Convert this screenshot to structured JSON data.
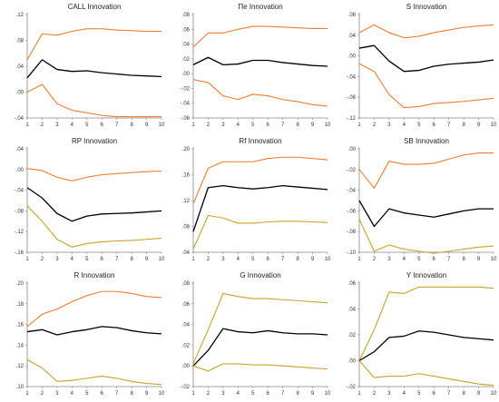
{
  "chart_data": [
    {
      "type": "line",
      "title": "CALL Innovation",
      "x": [
        1,
        2,
        3,
        4,
        5,
        6,
        7,
        8,
        9,
        10
      ],
      "ylim": [
        -0.04,
        0.12
      ],
      "yticks": [
        ".12",
        ".08",
        ".04",
        ".00",
        "-.04"
      ],
      "yticks_v": [
        0.12,
        0.08,
        0.04,
        0.0,
        -0.04
      ],
      "series": [
        {
          "role": "upper",
          "color": "#ED7D31",
          "values": [
            0.05,
            0.09,
            0.088,
            0.094,
            0.098,
            0.098,
            0.096,
            0.095,
            0.094,
            0.094
          ]
        },
        {
          "role": "response",
          "color": "#000000",
          "values": [
            0.022,
            0.05,
            0.035,
            0.032,
            0.033,
            0.03,
            0.028,
            0.026,
            0.025,
            0.024
          ]
        },
        {
          "role": "lower",
          "color": "#ED7D31",
          "values": [
            0.0,
            0.012,
            -0.018,
            -0.028,
            -0.032,
            -0.036,
            -0.038,
            -0.038,
            -0.038,
            -0.038
          ]
        }
      ]
    },
    {
      "type": "line",
      "title": "Пe Innovation",
      "x": [
        1,
        2,
        3,
        4,
        5,
        6,
        7,
        8,
        9,
        10
      ],
      "ylim": [
        -0.06,
        0.08
      ],
      "yticks": [
        ".08",
        ".06",
        ".04",
        ".02",
        ".00",
        "-.02",
        "-.04",
        "-.06"
      ],
      "yticks_v": [
        0.08,
        0.06,
        0.04,
        0.02,
        0.0,
        -0.02,
        -0.04,
        -0.06
      ],
      "series": [
        {
          "role": "upper",
          "color": "#ED7D31",
          "values": [
            0.036,
            0.055,
            0.055,
            0.06,
            0.064,
            0.064,
            0.063,
            0.062,
            0.061,
            0.061
          ]
        },
        {
          "role": "response",
          "color": "#000000",
          "values": [
            0.012,
            0.022,
            0.012,
            0.013,
            0.018,
            0.018,
            0.015,
            0.013,
            0.011,
            0.01
          ]
        },
        {
          "role": "lower",
          "color": "#ED7D31",
          "values": [
            -0.008,
            -0.012,
            -0.03,
            -0.035,
            -0.028,
            -0.03,
            -0.035,
            -0.038,
            -0.042,
            -0.044
          ]
        }
      ]
    },
    {
      "type": "line",
      "title": "S Innovation",
      "x": [
        1,
        2,
        3,
        4,
        5,
        6,
        7,
        8,
        9,
        10
      ],
      "ylim": [
        -0.12,
        0.08
      ],
      "yticks": [
        ".08",
        ".04",
        ".00",
        "-.04",
        "-.08",
        "-.12"
      ],
      "yticks_v": [
        0.08,
        0.04,
        0.0,
        -0.04,
        -0.08,
        -0.12
      ],
      "series": [
        {
          "role": "upper",
          "color": "#ED7D31",
          "values": [
            0.045,
            0.06,
            0.045,
            0.035,
            0.038,
            0.045,
            0.05,
            0.055,
            0.058,
            0.06
          ]
        },
        {
          "role": "response",
          "color": "#000000",
          "values": [
            0.015,
            0.02,
            -0.01,
            -0.03,
            -0.028,
            -0.02,
            -0.016,
            -0.014,
            -0.012,
            -0.008
          ]
        },
        {
          "role": "lower",
          "color": "#ED7D31",
          "values": [
            -0.015,
            -0.03,
            -0.075,
            -0.1,
            -0.098,
            -0.092,
            -0.09,
            -0.088,
            -0.085,
            -0.082
          ]
        }
      ]
    },
    {
      "type": "line",
      "title": "RP Innovation",
      "x": [
        1,
        2,
        3,
        4,
        5,
        6,
        7,
        8,
        9,
        10
      ],
      "ylim": [
        -0.16,
        0.04
      ],
      "yticks": [
        ".04",
        ".00",
        "-.04",
        "-.08",
        "-.12",
        "-.16"
      ],
      "yticks_v": [
        0.04,
        0.0,
        -0.04,
        -0.08,
        -0.12,
        -0.16
      ],
      "series": [
        {
          "role": "upper",
          "color": "#ED7D31",
          "values": [
            0.002,
            -0.002,
            -0.015,
            -0.022,
            -0.015,
            -0.01,
            -0.008,
            -0.006,
            -0.004,
            -0.003
          ]
        },
        {
          "role": "response",
          "color": "#000000",
          "values": [
            -0.035,
            -0.055,
            -0.085,
            -0.1,
            -0.09,
            -0.086,
            -0.085,
            -0.084,
            -0.082,
            -0.08
          ]
        },
        {
          "role": "lower",
          "color": "#C9A227",
          "values": [
            -0.07,
            -0.1,
            -0.135,
            -0.15,
            -0.143,
            -0.14,
            -0.138,
            -0.137,
            -0.135,
            -0.133
          ]
        }
      ]
    },
    {
      "type": "line",
      "title": "Rf Innovation",
      "x": [
        1,
        2,
        3,
        4,
        5,
        6,
        7,
        8,
        9,
        10
      ],
      "ylim": [
        0.04,
        0.2
      ],
      "yticks": [
        ".20",
        ".16",
        ".12",
        ".08",
        ".04"
      ],
      "yticks_v": [
        0.2,
        0.16,
        0.12,
        0.08,
        0.04
      ],
      "series": [
        {
          "role": "upper",
          "color": "#ED7D31",
          "values": [
            0.115,
            0.17,
            0.18,
            0.18,
            0.18,
            0.185,
            0.187,
            0.187,
            0.185,
            0.183
          ]
        },
        {
          "role": "response",
          "color": "#000000",
          "values": [
            0.072,
            0.14,
            0.143,
            0.14,
            0.138,
            0.14,
            0.143,
            0.141,
            0.139,
            0.137
          ]
        },
        {
          "role": "lower",
          "color": "#C9A227",
          "values": [
            0.045,
            0.097,
            0.093,
            0.085,
            0.085,
            0.087,
            0.088,
            0.088,
            0.087,
            0.086
          ]
        }
      ]
    },
    {
      "type": "line",
      "title": "SB Innovation",
      "x": [
        1,
        2,
        3,
        4,
        5,
        6,
        7,
        8,
        9,
        10
      ],
      "ylim": [
        -0.1,
        0.0
      ],
      "yticks": [
        ".00",
        "-.02",
        "-.04",
        "-.06",
        "-.08",
        "-.10"
      ],
      "yticks_v": [
        0.0,
        -0.02,
        -0.04,
        -0.06,
        -0.08,
        -0.1
      ],
      "series": [
        {
          "role": "upper",
          "color": "#ED7D31",
          "values": [
            -0.02,
            -0.038,
            -0.012,
            -0.015,
            -0.015,
            -0.014,
            -0.01,
            -0.006,
            -0.004,
            -0.004
          ]
        },
        {
          "role": "response",
          "color": "#000000",
          "values": [
            -0.05,
            -0.075,
            -0.058,
            -0.062,
            -0.064,
            -0.066,
            -0.063,
            -0.06,
            -0.058,
            -0.058
          ]
        },
        {
          "role": "lower",
          "color": "#C9A227",
          "values": [
            -0.068,
            -0.099,
            -0.093,
            -0.097,
            -0.099,
            -0.101,
            -0.099,
            -0.097,
            -0.095,
            -0.094
          ]
        }
      ]
    },
    {
      "type": "line",
      "title": "R Innovation",
      "x": [
        1,
        2,
        3,
        4,
        5,
        6,
        7,
        8,
        9,
        10
      ],
      "ylim": [
        0.1,
        0.2
      ],
      "yticks": [
        ".20",
        ".18",
        ".16",
        ".14",
        ".12",
        ".10"
      ],
      "yticks_v": [
        0.2,
        0.18,
        0.16,
        0.14,
        0.12,
        0.1
      ],
      "series": [
        {
          "role": "upper",
          "color": "#ED7D31",
          "values": [
            0.158,
            0.17,
            0.175,
            0.182,
            0.188,
            0.192,
            0.192,
            0.19,
            0.187,
            0.186
          ]
        },
        {
          "role": "response",
          "color": "#000000",
          "values": [
            0.153,
            0.155,
            0.15,
            0.153,
            0.155,
            0.158,
            0.157,
            0.154,
            0.152,
            0.151
          ]
        },
        {
          "role": "lower",
          "color": "#C9A227",
          "values": [
            0.126,
            0.118,
            0.105,
            0.106,
            0.108,
            0.11,
            0.108,
            0.105,
            0.103,
            0.102
          ]
        }
      ]
    },
    {
      "type": "line",
      "title": "G Innovation",
      "x": [
        1,
        2,
        3,
        4,
        5,
        6,
        7,
        8,
        9,
        10
      ],
      "ylim": [
        -0.02,
        0.08
      ],
      "yticks": [
        ".08",
        ".06",
        ".04",
        ".02",
        ".00",
        "-.02"
      ],
      "yticks_v": [
        0.08,
        0.06,
        0.04,
        0.02,
        0.0,
        -0.02
      ],
      "series": [
        {
          "role": "upper",
          "color": "#C9A227",
          "values": [
            0.002,
            0.035,
            0.07,
            0.067,
            0.065,
            0.065,
            0.064,
            0.063,
            0.062,
            0.061
          ]
        },
        {
          "role": "response",
          "color": "#000000",
          "values": [
            0.0,
            0.015,
            0.036,
            0.033,
            0.032,
            0.034,
            0.032,
            0.031,
            0.031,
            0.03
          ]
        },
        {
          "role": "lower",
          "color": "#C9A227",
          "values": [
            0.0,
            -0.005,
            0.002,
            0.002,
            0.001,
            0.001,
            0.0,
            -0.001,
            -0.002,
            -0.003
          ]
        }
      ]
    },
    {
      "type": "line",
      "title": "Y Innovation",
      "x": [
        1,
        2,
        3,
        4,
        5,
        6,
        7,
        8,
        9,
        10
      ],
      "ylim": [
        -0.02,
        0.06
      ],
      "yticks": [
        ".06",
        ".04",
        ".02",
        ".00",
        "-.02"
      ],
      "yticks_v": [
        0.06,
        0.04,
        0.02,
        0.0,
        -0.02
      ],
      "series": [
        {
          "role": "upper",
          "color": "#C9A227",
          "values": [
            0.0,
            0.024,
            0.053,
            0.052,
            0.057,
            0.057,
            0.057,
            0.057,
            0.057,
            0.056
          ]
        },
        {
          "role": "response",
          "color": "#000000",
          "values": [
            0.0,
            0.007,
            0.018,
            0.019,
            0.023,
            0.022,
            0.02,
            0.018,
            0.017,
            0.016
          ]
        },
        {
          "role": "lower",
          "color": "#C9A227",
          "values": [
            0.0,
            -0.013,
            -0.012,
            -0.012,
            -0.01,
            -0.012,
            -0.014,
            -0.016,
            -0.018,
            -0.019
          ]
        }
      ]
    }
  ]
}
